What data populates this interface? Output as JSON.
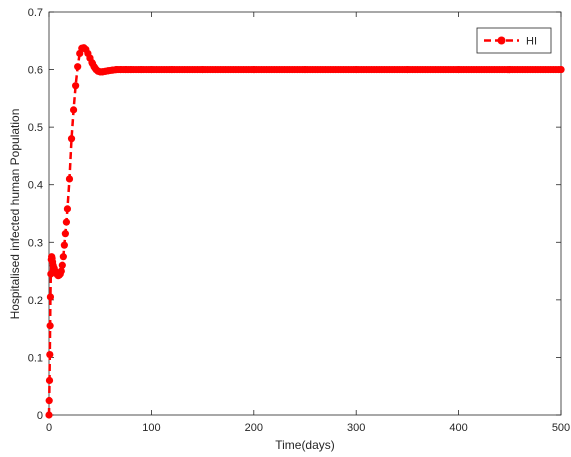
{
  "chart_data": {
    "type": "line",
    "xlabel": "Time(days)",
    "ylabel": "Hospitalised infected human Population",
    "xlim": [
      0,
      500
    ],
    "ylim": [
      0,
      0.7
    ],
    "xticks": [
      "0",
      "100",
      "200",
      "300",
      "400",
      "500"
    ],
    "yticks": [
      "0",
      "0.1",
      "0.2",
      "0.3",
      "0.4",
      "0.5",
      "0.6",
      "0.7"
    ],
    "grid": false,
    "legend_position": "top-right",
    "line_style": "dashed",
    "marker": "circle",
    "color": "#ff0000",
    "series": [
      {
        "name": "HI",
        "x": [
          0,
          0.2,
          0.5,
          0.8,
          1.1,
          1.4,
          1.8,
          2.2,
          2.6,
          3,
          3.5,
          4,
          5,
          6,
          7,
          8,
          9,
          10,
          11,
          12,
          13,
          14,
          15,
          16,
          17,
          18,
          20,
          22,
          24,
          26,
          28,
          30,
          32,
          34,
          36,
          38,
          40,
          42,
          44,
          46,
          48,
          50,
          52,
          55,
          58,
          62,
          66,
          70,
          75,
          80,
          90,
          100,
          120,
          150,
          200,
          250,
          300,
          350,
          400,
          450,
          500
        ],
        "values": [
          0.0,
          0.025,
          0.06,
          0.105,
          0.155,
          0.205,
          0.245,
          0.27,
          0.275,
          0.272,
          0.266,
          0.26,
          0.255,
          0.25,
          0.247,
          0.244,
          0.242,
          0.243,
          0.245,
          0.25,
          0.26,
          0.275,
          0.295,
          0.315,
          0.335,
          0.358,
          0.41,
          0.48,
          0.53,
          0.572,
          0.605,
          0.628,
          0.637,
          0.638,
          0.635,
          0.628,
          0.62,
          0.612,
          0.605,
          0.6,
          0.597,
          0.596,
          0.596,
          0.597,
          0.598,
          0.599,
          0.6,
          0.6,
          0.6,
          0.6,
          0.6,
          0.6,
          0.6,
          0.6,
          0.6,
          0.6,
          0.6,
          0.6,
          0.6,
          0.6,
          0.6
        ]
      }
    ]
  }
}
